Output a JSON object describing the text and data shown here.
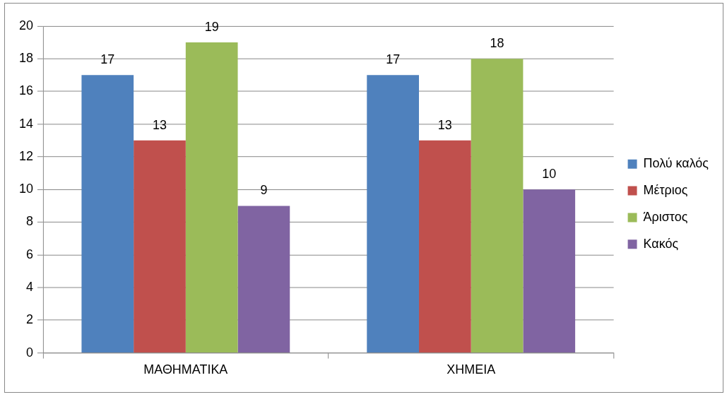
{
  "chart_data": {
    "type": "bar",
    "categories": [
      "ΜΑΘΗΜΑΤΙΚΑ",
      "ΧΗΜΕΙΑ"
    ],
    "series": [
      {
        "name": "Πολύ καλός",
        "color": "#4f81bd",
        "values": [
          17,
          17
        ]
      },
      {
        "name": "Μέτριος",
        "color": "#c0504d",
        "values": [
          13,
          13
        ]
      },
      {
        "name": "Άριστος",
        "color": "#9bbb59",
        "values": [
          19,
          18
        ]
      },
      {
        "name": "Κακός",
        "color": "#8064a2",
        "values": [
          9,
          10
        ]
      }
    ],
    "ylim": [
      0,
      20
    ],
    "yticks": [
      0,
      2,
      4,
      6,
      8,
      10,
      12,
      14,
      16,
      18,
      20
    ],
    "grid": "y",
    "legend": "right",
    "data_labels": true
  }
}
